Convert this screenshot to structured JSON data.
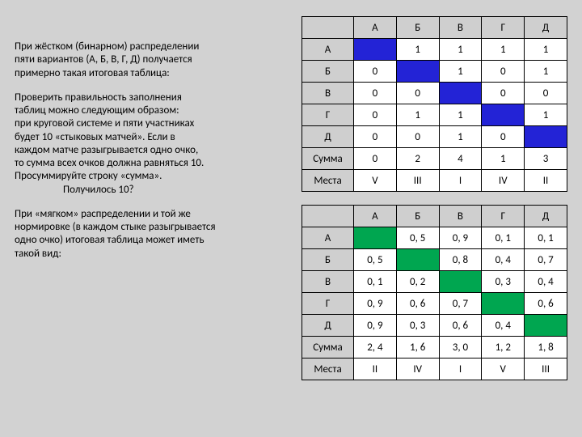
{
  "text": {
    "p1a": "При жёстком (бинарном) распределении",
    "p1b": "пяти вариантов (А, Б, В, Г, Д) получается",
    "p1c": "примерно такая итоговая таблица:",
    "p2a": "Проверить правильность заполнения",
    "p2b": "таблиц можно следующим образом:",
    "p2c": "при круговой системе и пяти участниках",
    "p2d": "будет 10 «стыковых матчей». Если в",
    "p2e": "каждом матче разыгрывается одно очко,",
    "p2f": "то сумма всех очков должна равняться 10.",
    "p2g": "Просуммируйте строку «сумма».",
    "p2h": "Получилось 10?",
    "p3a": "При «мягком» распределении и той же",
    "p3b": "нормировке (в каждом стыке разыгрывается",
    "p3c": "одно очко) итоговая таблица может иметь",
    "p3d": "такой вид:"
  },
  "labels": {
    "cols": [
      "А",
      "Б",
      "В",
      "Г",
      "Д"
    ],
    "rows": [
      "А",
      "Б",
      "В",
      "Г",
      "Д"
    ],
    "sum": "Сумма",
    "places": "Места"
  },
  "table1": {
    "diagColor": "#2323d6",
    "cells": [
      [
        "",
        "1",
        "1",
        "1",
        "1"
      ],
      [
        "0",
        "",
        "1",
        "0",
        "1"
      ],
      [
        "0",
        "0",
        "",
        "0",
        "0"
      ],
      [
        "0",
        "1",
        "1",
        "",
        "1"
      ],
      [
        "0",
        "0",
        "1",
        "0",
        ""
      ]
    ],
    "sum": [
      "0",
      "2",
      "4",
      "1",
      "3"
    ],
    "places": [
      "V",
      "III",
      "I",
      "IV",
      "II"
    ]
  },
  "table2": {
    "diagColor": "#00a650",
    "cells": [
      [
        "",
        "0, 5",
        "0, 9",
        "0, 1",
        "0, 1"
      ],
      [
        "0, 5",
        "",
        "0, 8",
        "0, 4",
        "0, 7"
      ],
      [
        "0, 1",
        "0, 2",
        "",
        "0, 3",
        "0, 4"
      ],
      [
        "0, 9",
        "0, 6",
        "0, 7",
        "",
        "0, 6"
      ],
      [
        "0, 9",
        "0, 3",
        "0, 6",
        "0, 4",
        ""
      ]
    ],
    "sum": [
      "2, 4",
      "1, 6",
      "3, 0",
      "1, 2",
      "1, 8"
    ],
    "places": [
      "II",
      "IV",
      "I",
      "V",
      "III"
    ]
  }
}
